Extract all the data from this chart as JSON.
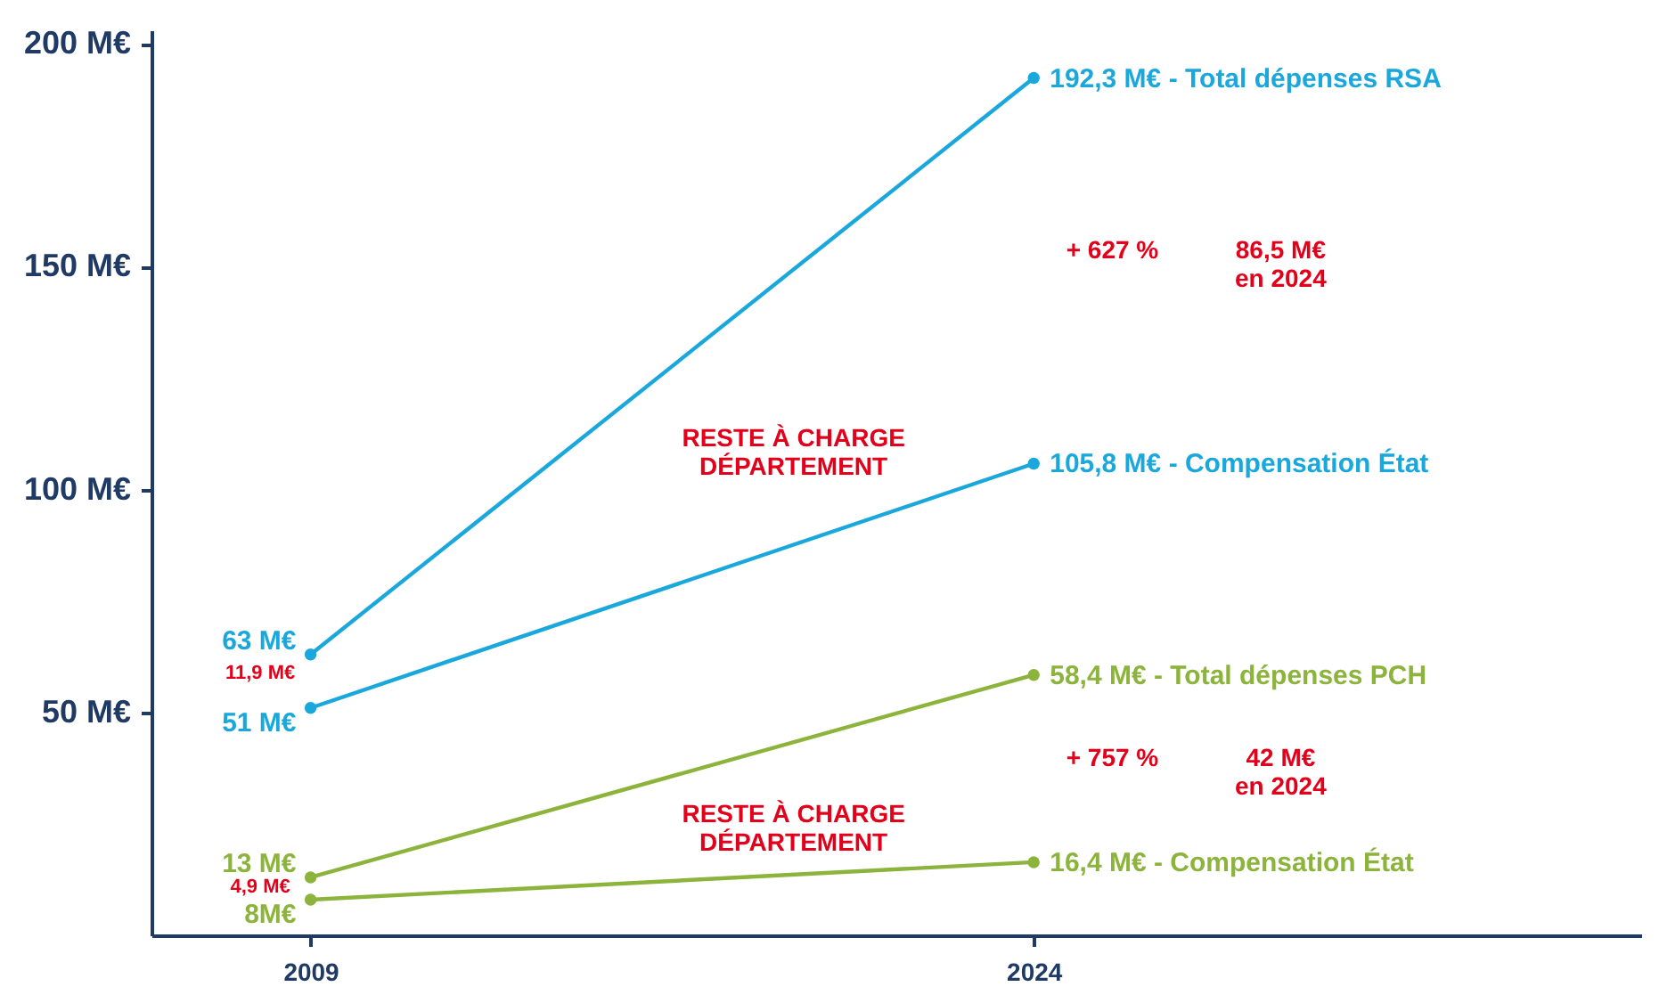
{
  "chart_data": {
    "type": "line",
    "x": [
      2009,
      2024
    ],
    "xlim": [
      2005.7,
      2036.6
    ],
    "xticks": [
      2009,
      2024
    ],
    "ylim": [
      0,
      203
    ],
    "yticks": [
      {
        "value": 50,
        "label": "50 M€"
      },
      {
        "value": 100,
        "label": "100 M€"
      },
      {
        "value": 150,
        "label": "150 M€"
      },
      {
        "value": 200,
        "label": "200 M€"
      }
    ],
    "marker": "circle",
    "line_style": "solid",
    "grid": false,
    "series": [
      {
        "color": "#1aa8dc",
        "values": [
          63,
          192.3
        ],
        "value_labels": [
          "63 M€",
          "192,3 M€ - Total dépenses RSA"
        ]
      },
      {
        "color": "#1aa8dc",
        "values": [
          51,
          105.8
        ],
        "value_labels": [
          "51 M€",
          "105,8 M€ - Compensation État"
        ]
      },
      {
        "color": "#8cb43c",
        "values": [
          13,
          58.4
        ],
        "value_labels": [
          "13 M€",
          "58,4 M€ - Total dépenses PCH"
        ]
      },
      {
        "color": "#8cb43c",
        "values": [
          8,
          16.4
        ],
        "value_labels": [
          "8M€",
          "16,4 M€ - Compensation État"
        ]
      }
    ],
    "annotations": [
      "11,9 M€",
      "4,9 M€",
      "+ 627 %",
      "86,5 M€\nen 2024",
      "+ 757 %",
      "42 M€\nen 2024",
      "RESTE À CHARGE\nDÉPARTEMENT",
      "RESTE À CHARGE\nDÉPARTEMENT"
    ]
  }
}
